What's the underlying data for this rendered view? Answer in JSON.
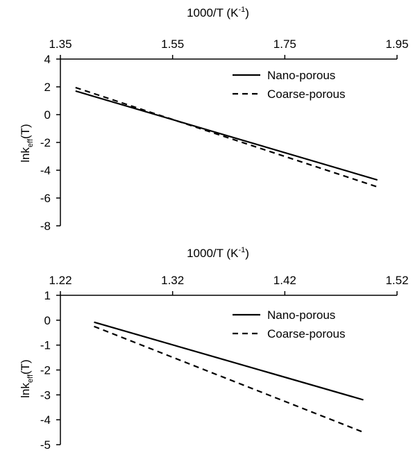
{
  "chart_data": [
    {
      "type": "line",
      "title": "",
      "xlabel": "1000/T (K",
      "xlabel_sup": "-1",
      "xlabel_end": ")",
      "ylabel_main": "lnk",
      "ylabel_sub": "eff",
      "ylabel_end": "(T)",
      "xlim": [
        1.35,
        1.95
      ],
      "ylim": [
        -8,
        4
      ],
      "x_ticks": [
        "1.35",
        "1.55",
        "1.75",
        "1.95"
      ],
      "y_ticks": [
        "4",
        "2",
        "0",
        "-2",
        "-4",
        "-6",
        "-8"
      ],
      "x_axis_position": "top",
      "grid": false,
      "legend_position": "top-right",
      "series": [
        {
          "name": "Nano-porous",
          "style": "solid",
          "x": [
            1.377,
            1.915
          ],
          "y": [
            1.7,
            -4.7
          ]
        },
        {
          "name": "Coarse-porous",
          "style": "dashed",
          "x": [
            1.377,
            1.915
          ],
          "y": [
            1.95,
            -5.2
          ]
        }
      ]
    },
    {
      "type": "line",
      "title": "",
      "xlabel": "1000/T (K",
      "xlabel_sup": "-1",
      "xlabel_end": ")",
      "ylabel_main": "lnk",
      "ylabel_sub": "eff",
      "ylabel_end": "(T)",
      "xlim": [
        1.22,
        1.52
      ],
      "ylim": [
        -5,
        1
      ],
      "x_ticks": [
        "1.22",
        "1.32",
        "1.42",
        "1.52"
      ],
      "y_ticks": [
        "1",
        "0",
        "-1",
        "-2",
        "-3",
        "-4",
        "-5"
      ],
      "x_axis_position": "top",
      "grid": false,
      "legend_position": "top-right",
      "series": [
        {
          "name": "Nano-porous",
          "style": "solid",
          "x": [
            1.25,
            1.49
          ],
          "y": [
            -0.08,
            -3.2
          ]
        },
        {
          "name": "Coarse-porous",
          "style": "dashed",
          "x": [
            1.25,
            1.49
          ],
          "y": [
            -0.25,
            -4.5
          ]
        }
      ]
    }
  ],
  "colors": {
    "line": "#000000",
    "axis": "#000000",
    "background": "#ffffff"
  }
}
